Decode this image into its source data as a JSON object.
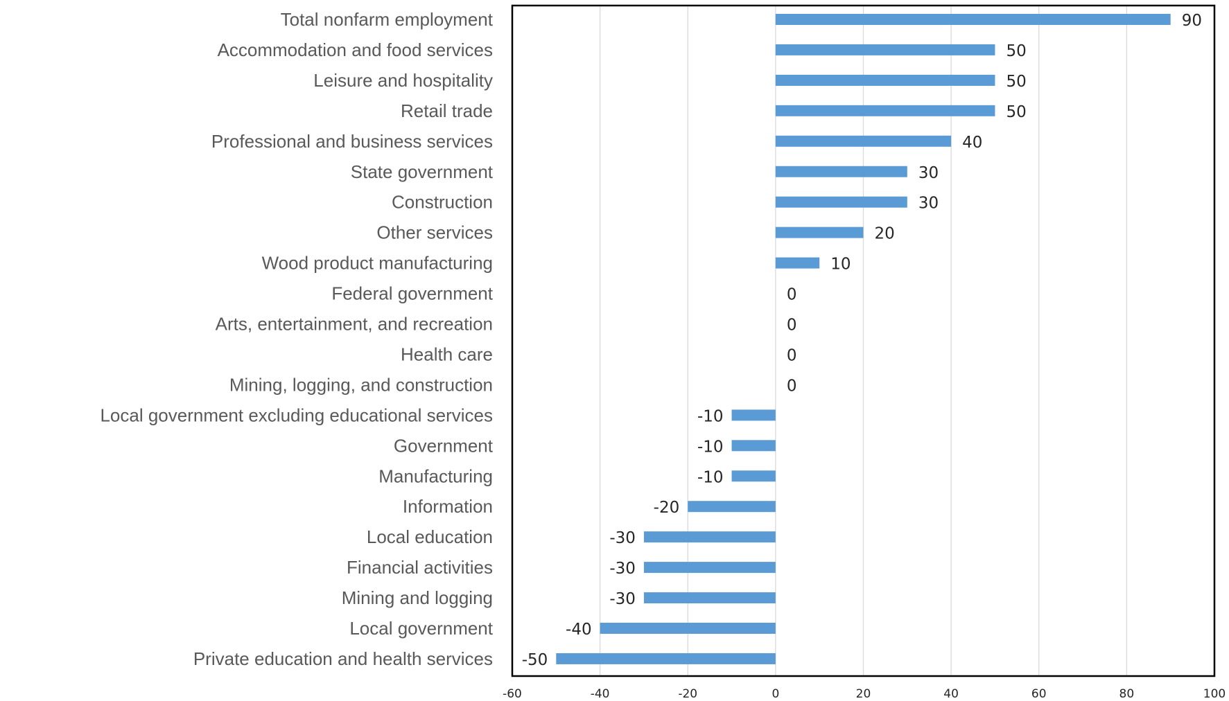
{
  "chart_data": {
    "type": "bar",
    "orientation": "horizontal",
    "categories": [
      "Total nonfarm employment",
      "Accommodation and food services",
      "Leisure and hospitality",
      "Retail trade",
      "Professional and business services",
      "State government",
      "Construction",
      "Other services",
      "Wood product manufacturing",
      "Federal government",
      "Arts, entertainment, and recreation",
      "Health care",
      "Mining, logging, and construction",
      "Local government excluding educational services",
      "Government",
      "Manufacturing",
      "Information",
      "Local education",
      "Financial activities",
      "Mining and logging",
      "Local government",
      "Private education and health services"
    ],
    "values": [
      90,
      50,
      50,
      50,
      40,
      30,
      30,
      20,
      10,
      0,
      0,
      0,
      0,
      -10,
      -10,
      -10,
      -20,
      -30,
      -30,
      -30,
      -40,
      -50
    ],
    "xlim": [
      -60,
      100
    ],
    "xticks": [
      -60,
      -40,
      -20,
      0,
      20,
      40,
      60,
      80,
      100
    ],
    "grid": true,
    "legend": "none",
    "bar_color": "#5b9bd5",
    "frame_color": "#000000",
    "gridline_color": "#d9d9d9"
  }
}
